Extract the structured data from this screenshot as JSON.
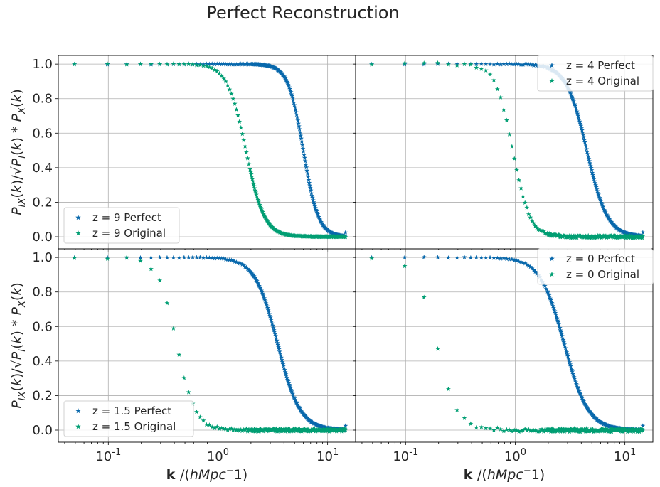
{
  "figure": {
    "title": "Perfect Reconstruction"
  },
  "colors": {
    "perfect": "#0868ac",
    "original": "#009e73"
  },
  "chart_data": [
    {
      "type": "scatter",
      "panel": "top-left",
      "marker": "star",
      "xscale": "log",
      "xlim": [
        0.035,
        18
      ],
      "ylim": [
        -0.07,
        1.05
      ],
      "yticks": [
        "0.0",
        "0.2",
        "0.4",
        "0.6",
        "0.8",
        "1.0"
      ],
      "ylabel": "P_IX(k)/√(P_I(k)*P_X(k))",
      "xlabel": "",
      "legend": "lower-left",
      "grid": true,
      "series": [
        {
          "name": "z = 9  Perfect",
          "profile": {
            "k_half": 6.0,
            "width": 0.22,
            "noise": 0.0
          }
        },
        {
          "name": "z = 9  Original",
          "profile": {
            "k_half": 1.8,
            "width": 0.27,
            "noise": 0.0
          }
        }
      ]
    },
    {
      "type": "scatter",
      "panel": "top-right",
      "marker": "star",
      "xscale": "log",
      "xlim": [
        0.035,
        18
      ],
      "ylim": [
        -0.07,
        1.05
      ],
      "yticks": [],
      "ylabel": "",
      "xlabel": "",
      "legend": "upper-right",
      "grid": true,
      "series": [
        {
          "name": "z = 4  Perfect",
          "profile": {
            "k_half": 4.5,
            "width": 0.3,
            "noise": 0.0
          }
        },
        {
          "name": "z = 4  Original",
          "profile": {
            "k_half": 0.95,
            "width": 0.25,
            "noise": 0.005
          }
        }
      ]
    },
    {
      "type": "scatter",
      "panel": "bottom-left",
      "marker": "star",
      "xscale": "log",
      "xlim": [
        0.035,
        18
      ],
      "ylim": [
        -0.07,
        1.05
      ],
      "yticks": [
        "0.0",
        "0.2",
        "0.4",
        "0.6",
        "0.8",
        "1.0"
      ],
      "xticks": [
        "10^-1",
        "10^0",
        "10^1"
      ],
      "ylabel": "P_IX(k)/√(P_I(k)*P_X(k))",
      "xlabel": "k /(hMpc^-1)",
      "legend": "lower-left",
      "grid": true,
      "series": [
        {
          "name": "z = 1.5  Perfect",
          "profile": {
            "k_half": 3.5,
            "width": 0.33,
            "noise": 0.0
          }
        },
        {
          "name": "z = 1.5  Original",
          "profile": {
            "k_half": 0.42,
            "width": 0.27,
            "noise": 0.006
          }
        }
      ]
    },
    {
      "type": "scatter",
      "panel": "bottom-right",
      "marker": "star",
      "xscale": "log",
      "xlim": [
        0.035,
        18
      ],
      "ylim": [
        -0.07,
        1.05
      ],
      "yticks": [],
      "xticks": [
        "10^-1",
        "10^0",
        "10^1"
      ],
      "ylabel": "",
      "xlabel": "k /(hMpc^-1)",
      "legend": "upper-right",
      "grid": true,
      "series": [
        {
          "name": "z = 0  Perfect",
          "profile": {
            "k_half": 2.8,
            "width": 0.35,
            "noise": 0.0
          }
        },
        {
          "name": "z = 0  Original",
          "profile": {
            "k_half": 0.19,
            "width": 0.3,
            "noise": 0.008
          }
        }
      ]
    }
  ]
}
